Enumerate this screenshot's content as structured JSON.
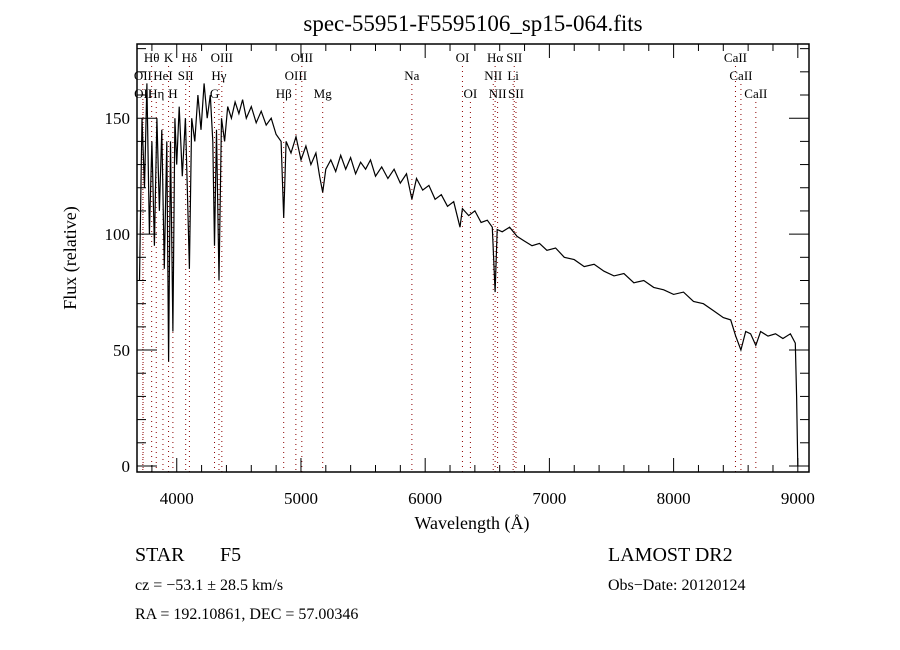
{
  "chart_data": {
    "type": "line",
    "title": "spec-55951-F5595106_sp15-064.fits",
    "xlabel": "Wavelength (Å)",
    "ylabel": "Flux (relative)",
    "xlim": [
      3680,
      9090
    ],
    "ylim": [
      -2.6,
      182
    ],
    "x_ticks": [
      4000,
      5000,
      6000,
      7000,
      8000,
      9000
    ],
    "y_ticks": [
      0,
      50,
      100,
      150
    ],
    "grid": false,
    "series": [
      {
        "name": "spectrum",
        "color": "#000000",
        "x": [
          3700,
          3720,
          3740,
          3760,
          3780,
          3800,
          3820,
          3840,
          3860,
          3880,
          3900,
          3920,
          3934,
          3950,
          3969,
          3985,
          4000,
          4020,
          4045,
          4070,
          4085,
          4102,
          4120,
          4145,
          4170,
          4195,
          4220,
          4245,
          4270,
          4290,
          4304,
          4320,
          4340,
          4360,
          4385,
          4410,
          4440,
          4470,
          4500,
          4530,
          4560,
          4600,
          4640,
          4680,
          4720,
          4760,
          4800,
          4840,
          4861,
          4880,
          4920,
          4960,
          5000,
          5040,
          5080,
          5120,
          5150,
          5175,
          5200,
          5240,
          5280,
          5320,
          5360,
          5400,
          5440,
          5480,
          5520,
          5560,
          5600,
          5650,
          5700,
          5750,
          5800,
          5850,
          5893,
          5930,
          5980,
          6030,
          6080,
          6130,
          6180,
          6230,
          6280,
          6300,
          6350,
          6400,
          6450,
          6500,
          6540,
          6563,
          6580,
          6620,
          6680,
          6740,
          6800,
          6860,
          6920,
          6980,
          7050,
          7120,
          7200,
          7280,
          7360,
          7440,
          7520,
          7600,
          7680,
          7760,
          7840,
          7920,
          8000,
          8080,
          8160,
          8240,
          8320,
          8400,
          8460,
          8500,
          8542,
          8580,
          8620,
          8662,
          8700,
          8760,
          8820,
          8880,
          8940,
          8980,
          8990,
          9000
        ],
        "y": [
          80,
          150,
          120,
          165,
          100,
          140,
          95,
          150,
          110,
          145,
          85,
          140,
          45,
          140,
          58,
          150,
          130,
          155,
          125,
          150,
          120,
          85,
          150,
          140,
          160,
          145,
          165,
          150,
          160,
          140,
          95,
          145,
          80,
          150,
          140,
          155,
          150,
          157,
          152,
          158,
          150,
          155,
          148,
          153,
          147,
          150,
          143,
          140,
          107,
          140,
          135,
          142,
          132,
          138,
          130,
          135,
          125,
          118,
          128,
          132,
          127,
          134,
          128,
          133,
          126,
          131,
          128,
          132,
          125,
          129,
          124,
          128,
          122,
          126,
          115,
          124,
          119,
          121,
          115,
          117,
          112,
          114,
          103,
          111,
          108,
          110,
          105,
          106,
          103,
          75,
          102,
          101,
          103,
          99,
          97,
          95,
          96,
          93,
          94,
          90,
          89,
          86,
          87,
          84,
          82,
          83,
          79,
          80,
          77,
          76,
          74,
          75,
          71,
          70,
          67,
          64,
          63,
          56,
          50,
          58,
          57,
          52,
          58,
          56,
          57,
          55,
          57,
          53,
          30,
          0
        ]
      }
    ],
    "line_marker_color": "#8b0000",
    "line_markers": [
      {
        "label": "Hθ",
        "wavelength": 3798,
        "row": 0
      },
      {
        "label": "K",
        "wavelength": 3934,
        "row": 0
      },
      {
        "label": "Hδ",
        "wavelength": 4102,
        "row": 0
      },
      {
        "label": "OIII",
        "wavelength": 4363,
        "row": 0
      },
      {
        "label": "OIII",
        "wavelength": 5007,
        "row": 0
      },
      {
        "label": "OI",
        "wavelength": 6300,
        "row": 0
      },
      {
        "label": "Hα",
        "wavelength": 6563,
        "row": 0
      },
      {
        "label": "SII",
        "wavelength": 6717,
        "row": 0
      },
      {
        "label": "CaII",
        "wavelength": 8498,
        "row": 0
      },
      {
        "label": "OII",
        "wavelength": 3727,
        "row": 1
      },
      {
        "label": "HeI",
        "wavelength": 3889,
        "row": 1
      },
      {
        "label": "SII",
        "wavelength": 4072,
        "row": 1
      },
      {
        "label": "Hγ",
        "wavelength": 4340,
        "row": 1
      },
      {
        "label": "OIII",
        "wavelength": 4959,
        "row": 1
      },
      {
        "label": "Na",
        "wavelength": 5893,
        "row": 1
      },
      {
        "label": "NII",
        "wavelength": 6548,
        "row": 1
      },
      {
        "label": "Li",
        "wavelength": 6708,
        "row": 1
      },
      {
        "label": "CaII",
        "wavelength": 8542,
        "row": 1
      },
      {
        "label": "OII",
        "wavelength": 3729,
        "row": 2
      },
      {
        "label": "Hη",
        "wavelength": 3835,
        "row": 2
      },
      {
        "label": "H",
        "wavelength": 3969,
        "row": 2
      },
      {
        "label": "G",
        "wavelength": 4304,
        "row": 2
      },
      {
        "label": "Hβ",
        "wavelength": 4861,
        "row": 2
      },
      {
        "label": "Mg",
        "wavelength": 5175,
        "row": 2
      },
      {
        "label": "OI",
        "wavelength": 6364,
        "row": 2
      },
      {
        "label": "NII",
        "wavelength": 6583,
        "row": 2
      },
      {
        "label": "SII",
        "wavelength": 6731,
        "row": 2
      },
      {
        "label": "CaII",
        "wavelength": 8662,
        "row": 2
      }
    ]
  },
  "info": {
    "object_class": "STAR",
    "subclass": "F5",
    "cz": "cz = −53.1 ± 28.5 km/s",
    "coords": "RA = 192.10861, DEC =  57.00346",
    "survey": "LAMOST DR2",
    "obs_date": "Obs−Date: 20120124"
  }
}
